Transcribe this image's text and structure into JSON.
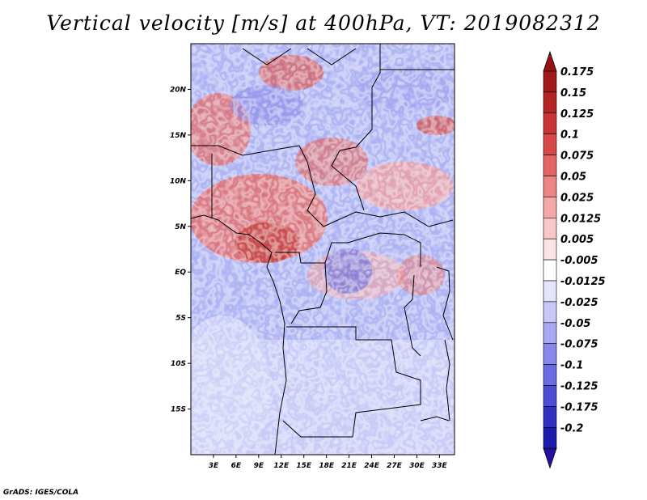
{
  "title": "Vertical velocity [m/s] at 400hPa, VT: 2019082312",
  "credit": "GrADS: IGES/COLA",
  "map": {
    "region": "Central and West Africa",
    "variable": "Vertical velocity",
    "units": "m/s",
    "level": "400hPa",
    "valid_time": "2019082312",
    "lon_range": [
      0,
      35
    ],
    "lat_range": [
      -20,
      25
    ],
    "lat_ticks": [
      {
        "value": 20,
        "label": "20N"
      },
      {
        "value": 15,
        "label": "15N"
      },
      {
        "value": 10,
        "label": "10N"
      },
      {
        "value": 5,
        "label": "5N"
      },
      {
        "value": 0,
        "label": "EQ"
      },
      {
        "value": -5,
        "label": "5S"
      },
      {
        "value": -10,
        "label": "10S"
      },
      {
        "value": -15,
        "label": "15S"
      }
    ],
    "lon_ticks": [
      {
        "value": 3,
        "label": "3E"
      },
      {
        "value": 6,
        "label": "6E"
      },
      {
        "value": 9,
        "label": "9E"
      },
      {
        "value": 12,
        "label": "12E"
      },
      {
        "value": 15,
        "label": "15E"
      },
      {
        "value": 18,
        "label": "18E"
      },
      {
        "value": 21,
        "label": "21E"
      },
      {
        "value": 24,
        "label": "24E"
      },
      {
        "value": 27,
        "label": "27E"
      },
      {
        "value": 30,
        "label": "30E"
      },
      {
        "value": 33,
        "label": "33E"
      }
    ]
  },
  "colorbar": {
    "levels": [
      {
        "label": "0.175",
        "color": "#a01818"
      },
      {
        "label": "0.15",
        "color": "#b42424"
      },
      {
        "label": "0.125",
        "color": "#c83434"
      },
      {
        "label": "0.1",
        "color": "#d84848"
      },
      {
        "label": "0.075",
        "color": "#e46464"
      },
      {
        "label": "0.05",
        "color": "#ee8484"
      },
      {
        "label": "0.025",
        "color": "#f4a8a8"
      },
      {
        "label": "0.0125",
        "color": "#f8c8c8"
      },
      {
        "label": "0.005",
        "color": "#fce4e4"
      },
      {
        "label": "-0.005",
        "color": "#ffffff"
      },
      {
        "label": "-0.0125",
        "color": "#e4e4fc"
      },
      {
        "label": "-0.025",
        "color": "#c8c8f8"
      },
      {
        "label": "-0.05",
        "color": "#a8a8f4"
      },
      {
        "label": "-0.075",
        "color": "#8888ec"
      },
      {
        "label": "-0.1",
        "color": "#6a6ae2"
      },
      {
        "label": "-0.125",
        "color": "#4c4cd4"
      },
      {
        "label": "-0.175",
        "color": "#3030c0"
      },
      {
        "label": "-0.2",
        "color": "#1c1cac"
      }
    ],
    "top_cap_color": "#981010",
    "bottom_cap_color": "#2410a0"
  }
}
